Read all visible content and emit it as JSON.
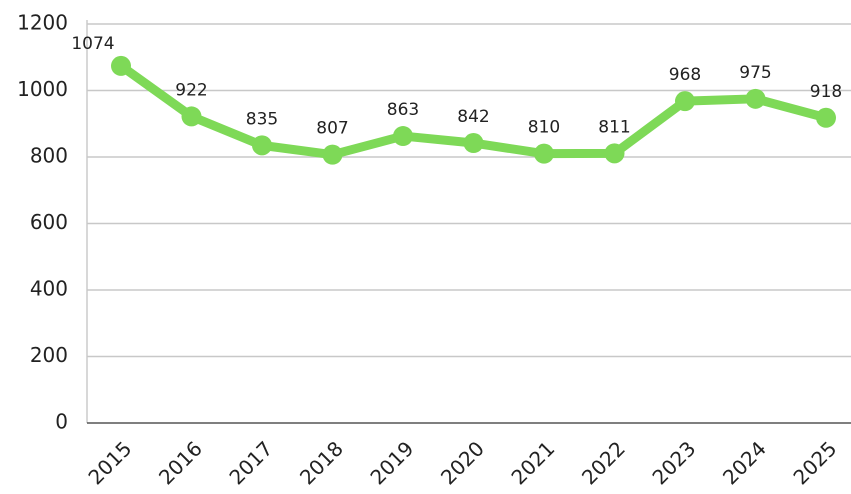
{
  "chart_data": {
    "type": "line",
    "categories": [
      "2015",
      "2016",
      "2017",
      "2018",
      "2019",
      "2020",
      "2021",
      "2022",
      "2023",
      "2024",
      "2025"
    ],
    "values": [
      1074,
      922,
      835,
      807,
      863,
      842,
      810,
      811,
      968,
      975,
      918
    ],
    "color": "#7ed957",
    "ylim": [
      0,
      1200
    ],
    "yticks": [
      0,
      200,
      400,
      600,
      800,
      1000,
      1200
    ],
    "grid": true
  }
}
